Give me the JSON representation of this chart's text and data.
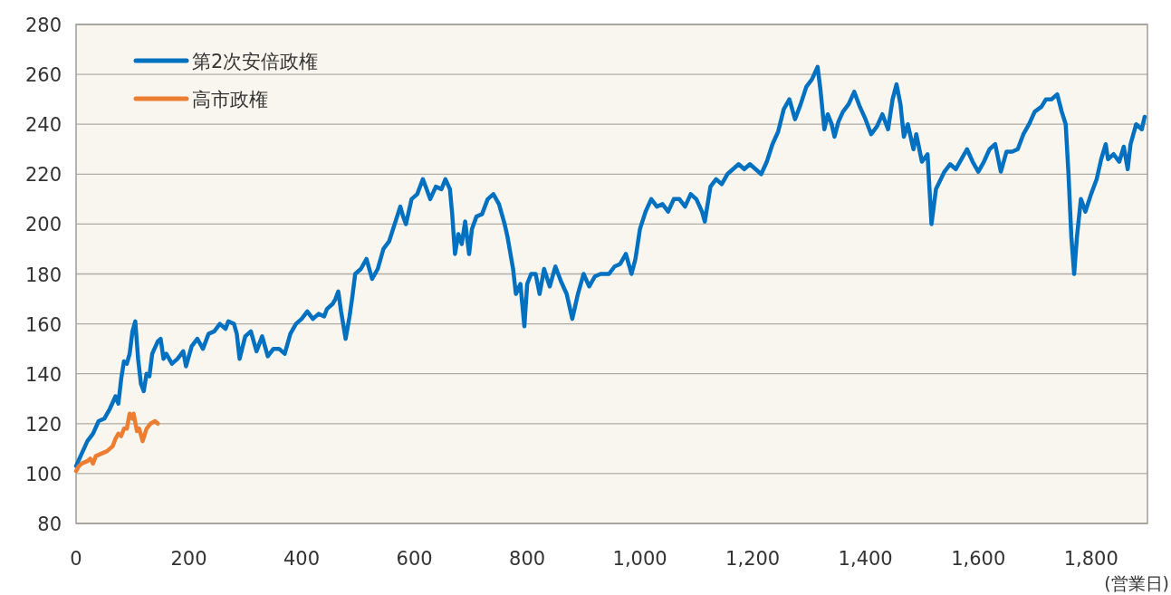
{
  "chart_data": {
    "type": "line",
    "xlabel": "(営業日)",
    "xlim": [
      0,
      1900
    ],
    "ylim": [
      80,
      280
    ],
    "xticks": [
      0,
      200,
      400,
      600,
      800,
      {
        "value": 1000,
        "label": "1,000"
      },
      {
        "value": 1200,
        "label": "1,200"
      },
      {
        "value": 1400,
        "label": "1,400"
      },
      {
        "value": 1600,
        "label": "1,600"
      },
      {
        "value": 1800,
        "label": "1,800"
      }
    ],
    "yticks": [
      80,
      100,
      120,
      140,
      160,
      180,
      200,
      220,
      240,
      260,
      280
    ],
    "grid": "y",
    "legend": "top left",
    "line_style": "solid",
    "marker": "none",
    "series": [
      {
        "name": "第2次安倍政権",
        "color": "#0070c0",
        "x": [
          0,
          10,
          20,
          30,
          40,
          50,
          60,
          70,
          75,
          80,
          85,
          90,
          95,
          100,
          105,
          110,
          115,
          120,
          125,
          130,
          135,
          145,
          150,
          155,
          160,
          170,
          180,
          190,
          195,
          205,
          215,
          225,
          235,
          245,
          255,
          265,
          270,
          280,
          285,
          290,
          300,
          310,
          320,
          330,
          340,
          350,
          360,
          370,
          380,
          390,
          400,
          410,
          420,
          430,
          440,
          445,
          455,
          460,
          465,
          470,
          478,
          485,
          490,
          495,
          505,
          515,
          525,
          535,
          545,
          555,
          565,
          575,
          580,
          585,
          595,
          605,
          615,
          620,
          628,
          638,
          648,
          655,
          663,
          667,
          672,
          678,
          684,
          690,
          697,
          702,
          710,
          720,
          730,
          740,
          750,
          760,
          765,
          775,
          780,
          788,
          795,
          800,
          807,
          815,
          822,
          830,
          840,
          850,
          860,
          870,
          880,
          890,
          900,
          910,
          920,
          930,
          945,
          955,
          965,
          975,
          985,
          992,
          1000,
          1010,
          1020,
          1030,
          1040,
          1050,
          1060,
          1070,
          1080,
          1090,
          1100,
          1110,
          1115,
          1125,
          1135,
          1145,
          1155,
          1165,
          1175,
          1185,
          1195,
          1205,
          1215,
          1225,
          1235,
          1245,
          1255,
          1265,
          1275,
          1285,
          1295,
          1305,
          1315,
          1320,
          1327,
          1333,
          1340,
          1345,
          1352,
          1360,
          1370,
          1380,
          1390,
          1400,
          1410,
          1420,
          1430,
          1440,
          1448,
          1455,
          1462,
          1468,
          1475,
          1485,
          1490,
          1500,
          1510,
          1517,
          1525,
          1540,
          1550,
          1560,
          1570,
          1580,
          1590,
          1600,
          1610,
          1620,
          1630,
          1640,
          1650,
          1660,
          1670,
          1680,
          1690,
          1700,
          1712,
          1720,
          1730,
          1740,
          1748,
          1755,
          1760,
          1765,
          1770,
          1775,
          1782,
          1790,
          1800,
          1810,
          1818,
          1826,
          1830,
          1840,
          1850,
          1858,
          1865,
          1870,
          1880,
          1890,
          1895
        ],
        "values": [
          103,
          108,
          113,
          116,
          121,
          122,
          126,
          131,
          128,
          138,
          145,
          144,
          148,
          157,
          161,
          146,
          136,
          133,
          140,
          139,
          148,
          153,
          154,
          146,
          148,
          144,
          146,
          149,
          143,
          151,
          154,
          150,
          156,
          157,
          160,
          158,
          161,
          160,
          156,
          146,
          155,
          157,
          149,
          155,
          147,
          150,
          150,
          148,
          156,
          160,
          162,
          165,
          162,
          164,
          163,
          166,
          168,
          170,
          173,
          165,
          154,
          163,
          171,
          180,
          182,
          186,
          178,
          182,
          190,
          193,
          200,
          207,
          203,
          200,
          210,
          212,
          218,
          215,
          210,
          215,
          214,
          218,
          214,
          204,
          188,
          196,
          192,
          201,
          188,
          198,
          203,
          204,
          210,
          212,
          208,
          200,
          195,
          182,
          172,
          176,
          159,
          176,
          180,
          180,
          172,
          182,
          175,
          183,
          177,
          172,
          162,
          172,
          180,
          175,
          179,
          180,
          180,
          183,
          184,
          188,
          180,
          186,
          198,
          205,
          210,
          207,
          208,
          205,
          210,
          210,
          207,
          212,
          210,
          205,
          201,
          215,
          218,
          216,
          220,
          222,
          224,
          222,
          224,
          222,
          220,
          225,
          232,
          237,
          246,
          250,
          242,
          248,
          255,
          258,
          263,
          254,
          238,
          244,
          240,
          235,
          241,
          245,
          248,
          253,
          247,
          242,
          236,
          239,
          244,
          238,
          250,
          256,
          248,
          235,
          240,
          230,
          236,
          225,
          228,
          200,
          214,
          221,
          224,
          222,
          226,
          230,
          225,
          221,
          225,
          230,
          232,
          221,
          229,
          229,
          230,
          236,
          240,
          245,
          247,
          250,
          250,
          252,
          245,
          240,
          220,
          195,
          180,
          195,
          210,
          205,
          212,
          218,
          226,
          232,
          226,
          228,
          225,
          231,
          222,
          232,
          240,
          238,
          243
        ]
      },
      {
        "name": "高市政権",
        "color": "#ed7d31",
        "x": [
          0,
          5,
          10,
          20,
          25,
          30,
          35,
          45,
          55,
          65,
          70,
          75,
          80,
          85,
          90,
          95,
          100,
          102,
          108,
          112,
          118,
          125,
          132,
          140,
          145
        ],
        "values": [
          101,
          103,
          104,
          105,
          106,
          104,
          107,
          108,
          109,
          111,
          114,
          116,
          115,
          118,
          118,
          124,
          122,
          124,
          117,
          118,
          113,
          118,
          120,
          121,
          120
        ]
      }
    ]
  }
}
